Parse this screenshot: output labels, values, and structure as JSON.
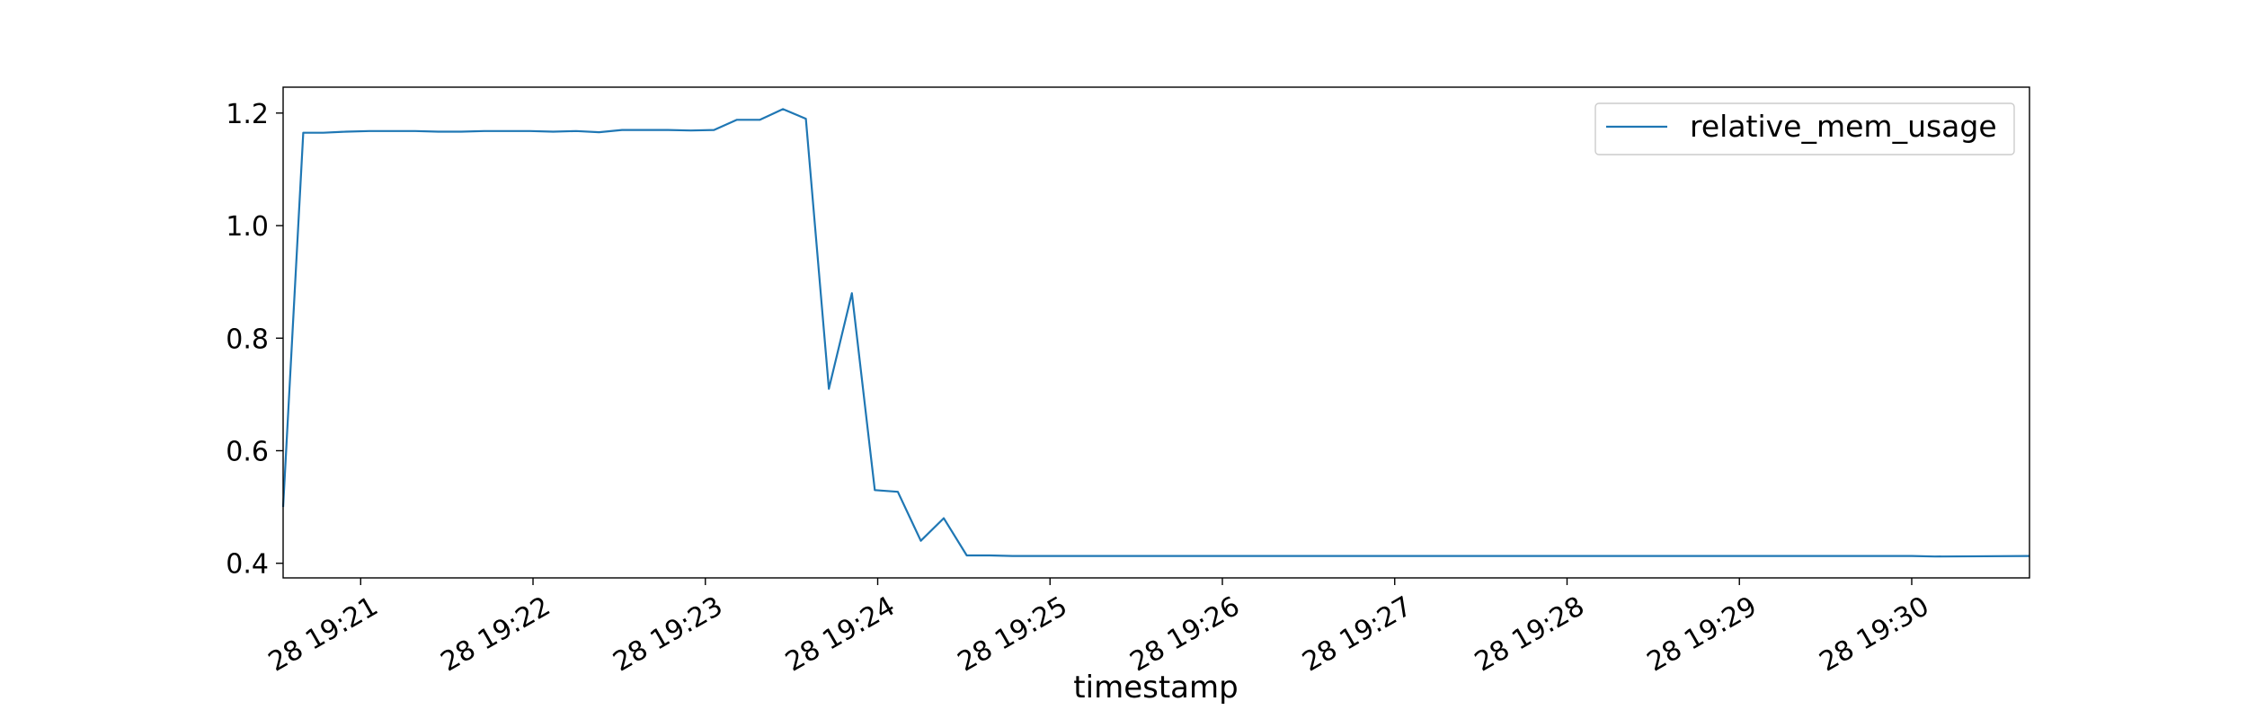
{
  "chart_data": {
    "type": "line",
    "title": "",
    "xlabel": "timestamp",
    "ylabel": "",
    "x_tick_labels": [
      "28 19:21",
      "28 19:22",
      "28 19:23",
      "28 19:24",
      "28 19:25",
      "28 19:26",
      "28 19:27",
      "28 19:28",
      "28 19:29",
      "28 19:30"
    ],
    "y_tick_labels": [
      "0.4",
      "0.6",
      "0.8",
      "1.0",
      "1.2"
    ],
    "y_ticks": [
      0.4,
      0.6,
      0.8,
      1.0,
      1.2
    ],
    "ylim": [
      0.374,
      1.246
    ],
    "xlim": [
      "19:20:33",
      "19:30:41"
    ],
    "legend_position": "top-right",
    "grid": false,
    "series": [
      {
        "name": "relative_mem_usage",
        "color": "#1f77b4",
        "x": [
          "19:20:33",
          "19:20:40",
          "19:20:47",
          "19:20:55",
          "19:21:03",
          "19:21:11",
          "19:21:19",
          "19:21:27",
          "19:21:35",
          "19:21:43",
          "19:21:51",
          "19:21:59",
          "19:22:07",
          "19:22:15",
          "19:22:23",
          "19:22:31",
          "19:22:39",
          "19:22:47",
          "19:22:55",
          "19:23:03",
          "19:23:11",
          "19:23:19",
          "19:23:27",
          "19:23:35",
          "19:23:43",
          "19:23:51",
          "19:23:59",
          "19:24:07",
          "19:24:15",
          "19:24:23",
          "19:24:31",
          "19:24:39",
          "19:24:47",
          "19:24:55",
          "19:25:15",
          "19:26:00",
          "19:27:00",
          "19:28:00",
          "19:29:00",
          "19:30:00",
          "19:30:08",
          "19:30:41"
        ],
        "y": [
          0.5,
          1.165,
          1.165,
          1.167,
          1.168,
          1.168,
          1.168,
          1.167,
          1.167,
          1.168,
          1.168,
          1.168,
          1.167,
          1.168,
          1.166,
          1.17,
          1.17,
          1.17,
          1.169,
          1.17,
          1.188,
          1.188,
          1.207,
          1.19,
          0.71,
          0.88,
          0.53,
          0.527,
          0.44,
          0.48,
          0.414,
          0.414,
          0.413,
          0.413,
          0.413,
          0.413,
          0.413,
          0.413,
          0.413,
          0.413,
          0.412,
          0.413
        ]
      }
    ]
  }
}
